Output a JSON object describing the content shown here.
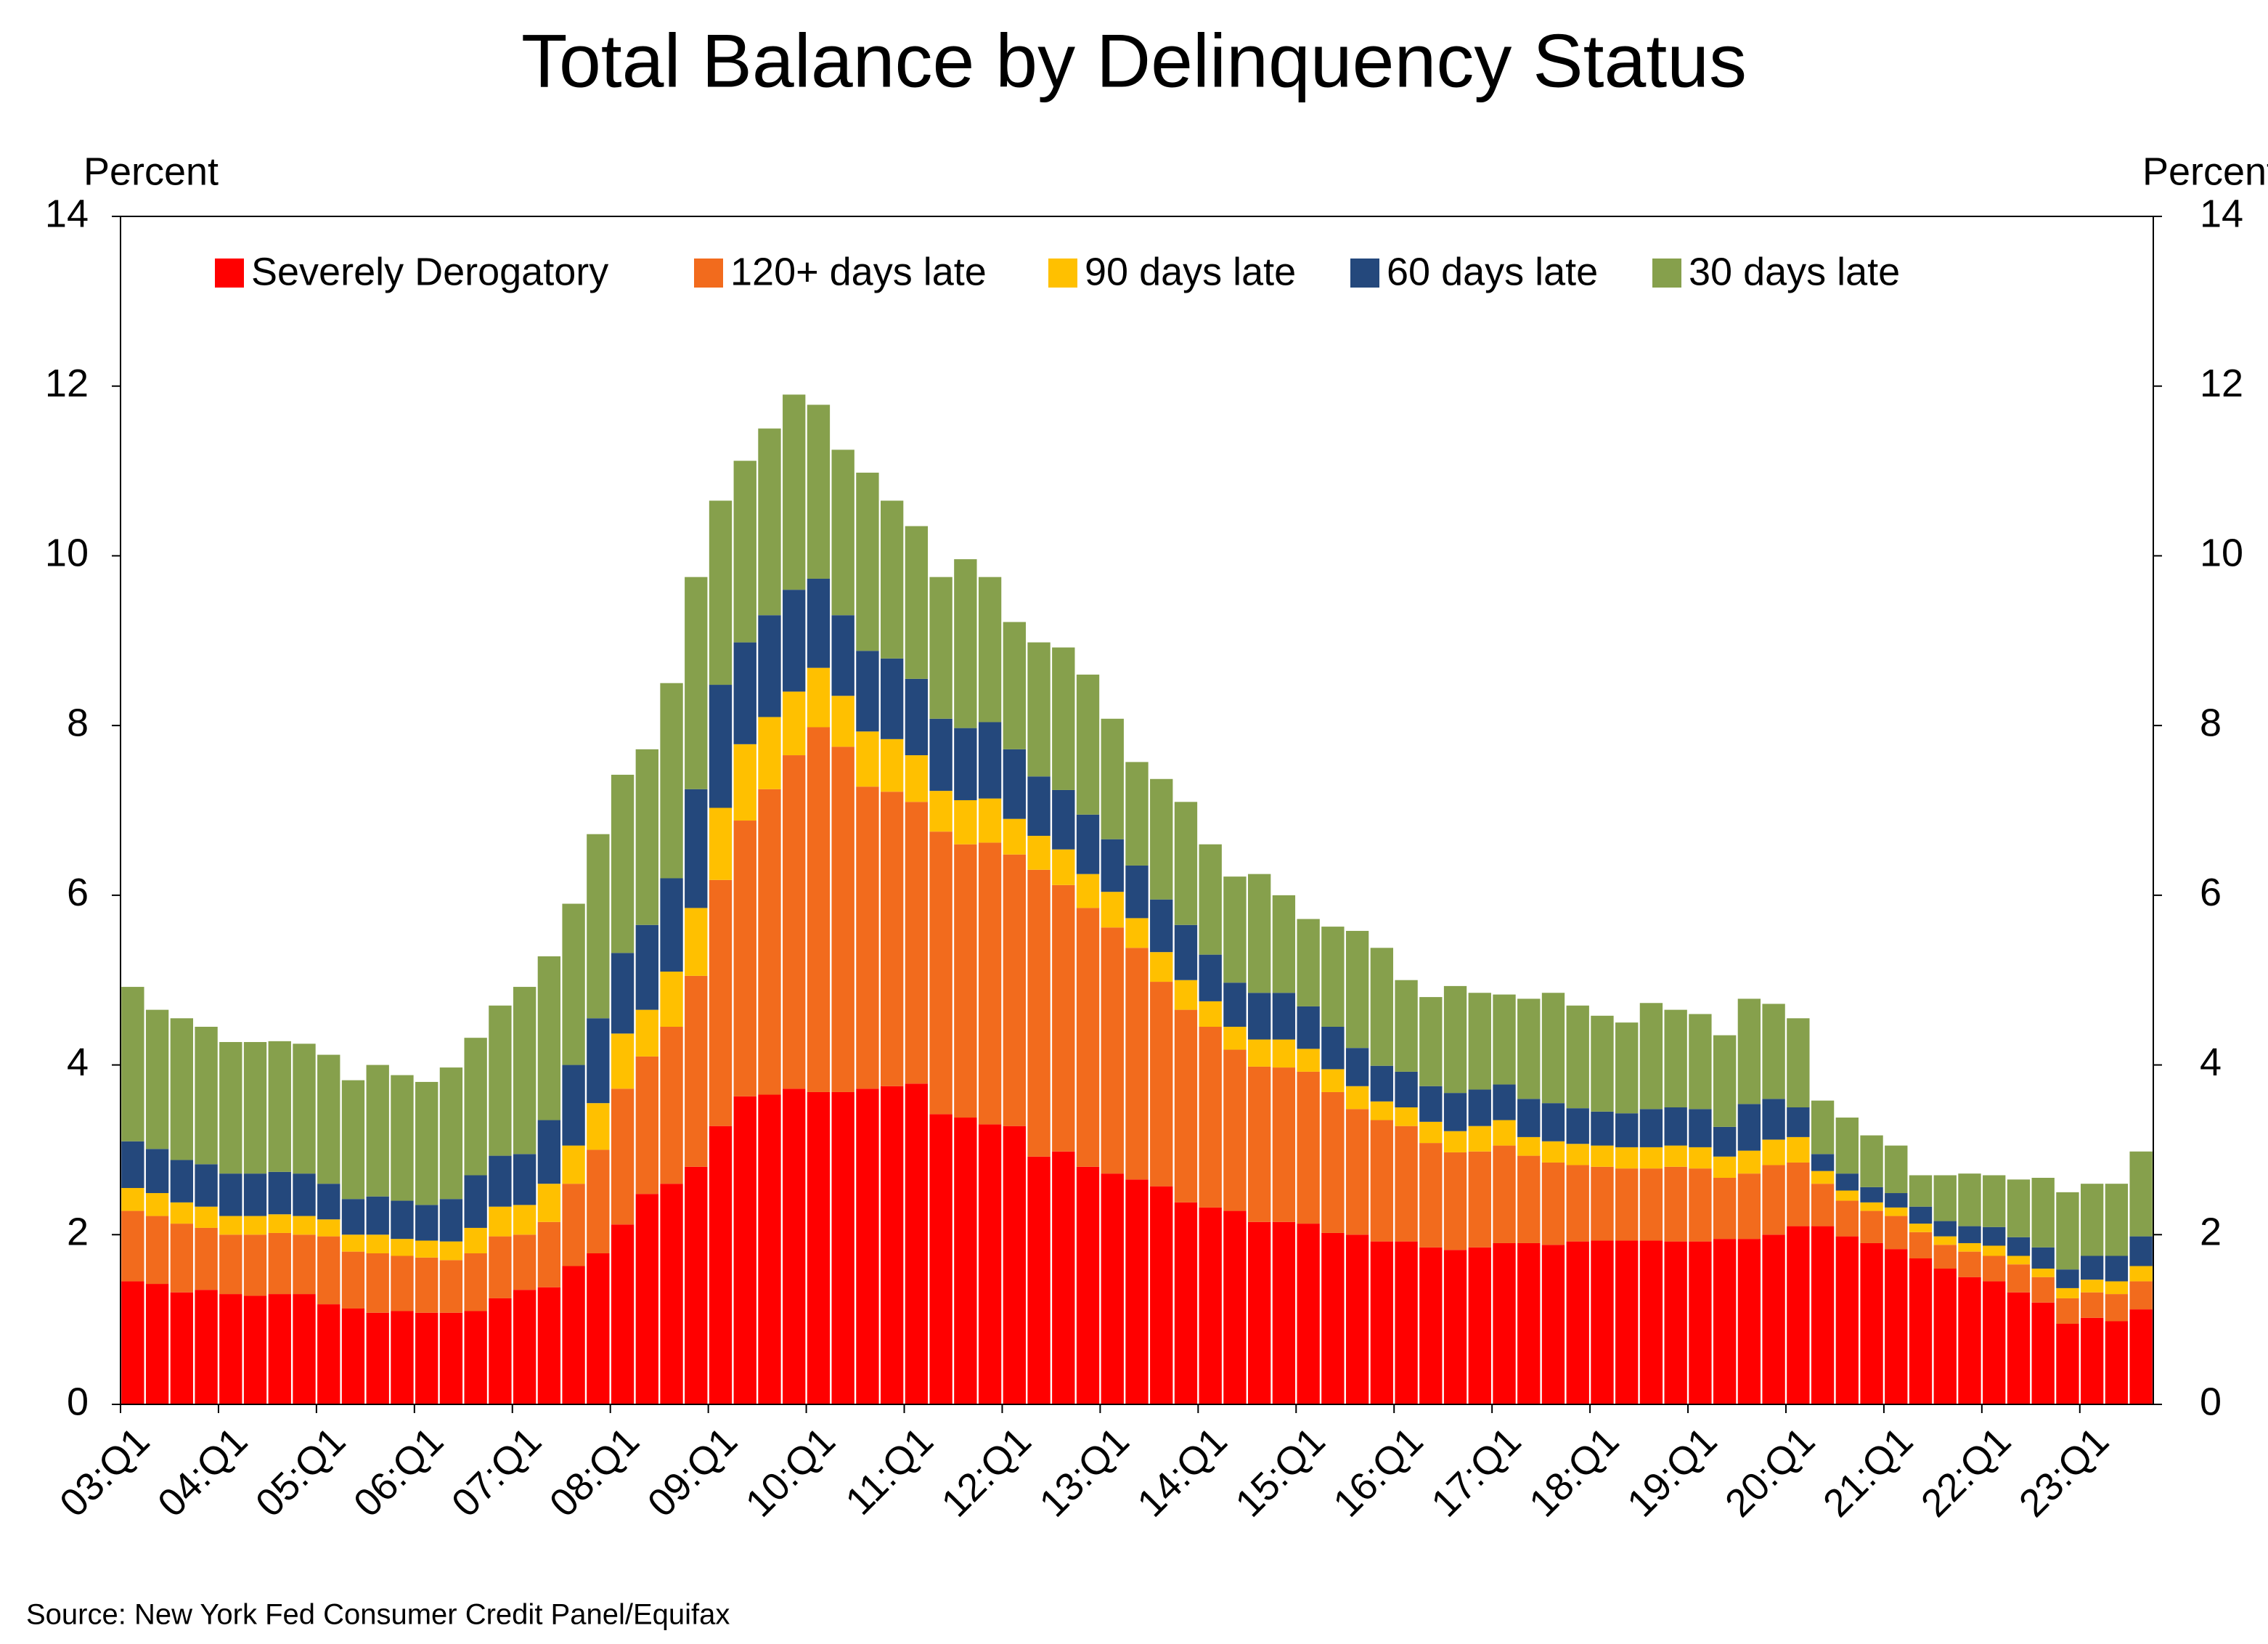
{
  "chart_data": {
    "type": "stacked_bar",
    "title": "Total Balance by Delinquency Status",
    "y_label": "Percent",
    "y2_label": "Percent",
    "source": "Source: New York Fed Consumer Credit Panel/Equifax",
    "ylim": [
      0,
      14
    ],
    "yticks": [
      0,
      2,
      4,
      6,
      8,
      10,
      12,
      14
    ],
    "y2lim": [
      0,
      14
    ],
    "y2ticks": [
      0,
      2,
      4,
      6,
      8,
      10,
      12,
      14
    ],
    "legend": "top",
    "categories": [
      "03:Q1",
      null,
      null,
      null,
      "04:Q1",
      null,
      null,
      null,
      "05:Q1",
      null,
      null,
      null,
      "06:Q1",
      null,
      null,
      null,
      "07:Q1",
      null,
      null,
      null,
      "08:Q1",
      null,
      null,
      null,
      "09:Q1",
      null,
      null,
      null,
      "10:Q1",
      null,
      null,
      null,
      "11:Q1",
      null,
      null,
      null,
      "12:Q1",
      null,
      null,
      null,
      "13:Q1",
      null,
      null,
      null,
      "14:Q1",
      null,
      null,
      null,
      "15:Q1",
      null,
      null,
      null,
      "16:Q1",
      null,
      null,
      null,
      "17:Q1",
      null,
      null,
      null,
      "18:Q1",
      null,
      null,
      null,
      "19:Q1",
      null,
      null,
      null,
      "20:Q1",
      null,
      null,
      null,
      "21:Q1",
      null,
      null,
      null,
      "22:Q1",
      null,
      null,
      null,
      "23:Q1",
      null,
      null
    ],
    "series": [
      {
        "name": "Severely Derogatory",
        "color": "#ff0000",
        "values": [
          1.45,
          1.42,
          1.32,
          1.35,
          1.3,
          1.28,
          1.3,
          1.3,
          1.18,
          1.13,
          1.08,
          1.1,
          1.08,
          1.08,
          1.1,
          1.25,
          1.35,
          1.38,
          1.63,
          1.78,
          2.12,
          2.48,
          2.6,
          2.8,
          3.28,
          3.63,
          3.65,
          3.72,
          3.68,
          3.68,
          3.72,
          3.75,
          3.78,
          3.42,
          3.38,
          3.3,
          3.28,
          2.92,
          2.98,
          2.8,
          2.72,
          2.65,
          2.57,
          2.38,
          2.32,
          2.28,
          2.15,
          2.15,
          2.13,
          2.02,
          2.0,
          1.92,
          1.92,
          1.85,
          1.82,
          1.85,
          1.9,
          1.9,
          1.88,
          1.92,
          1.93,
          1.93,
          1.93,
          1.92,
          1.92,
          1.95,
          1.95,
          2.0,
          2.1,
          2.1,
          1.98,
          1.9,
          1.83,
          1.72,
          1.6,
          1.5,
          1.45,
          1.32,
          1.2,
          0.95,
          1.02,
          0.98,
          1.12
        ]
      },
      {
        "name": "120+ days late",
        "color": "#f26b1d",
        "values": [
          0.83,
          0.8,
          0.81,
          0.73,
          0.7,
          0.72,
          0.72,
          0.7,
          0.8,
          0.67,
          0.7,
          0.65,
          0.65,
          0.62,
          0.68,
          0.73,
          0.65,
          0.77,
          0.97,
          1.22,
          1.6,
          1.62,
          1.85,
          2.25,
          2.9,
          3.25,
          3.6,
          3.93,
          4.3,
          4.07,
          3.56,
          3.47,
          3.32,
          3.33,
          3.22,
          3.32,
          3.2,
          3.38,
          3.14,
          3.05,
          2.9,
          2.73,
          2.41,
          2.27,
          2.13,
          1.9,
          1.83,
          1.82,
          1.79,
          1.66,
          1.48,
          1.43,
          1.36,
          1.23,
          1.15,
          1.13,
          1.15,
          1.03,
          0.97,
          0.9,
          0.87,
          0.85,
          0.85,
          0.88,
          0.86,
          0.72,
          0.77,
          0.82,
          0.75,
          0.5,
          0.42,
          0.38,
          0.39,
          0.31,
          0.28,
          0.3,
          0.3,
          0.33,
          0.3,
          0.3,
          0.3,
          0.32,
          0.33
        ]
      },
      {
        "name": "90 days late",
        "color": "#ffc000",
        "values": [
          0.27,
          0.27,
          0.25,
          0.25,
          0.22,
          0.22,
          0.22,
          0.22,
          0.2,
          0.2,
          0.22,
          0.2,
          0.2,
          0.22,
          0.3,
          0.35,
          0.35,
          0.45,
          0.45,
          0.55,
          0.65,
          0.55,
          0.65,
          0.8,
          0.85,
          0.9,
          0.85,
          0.75,
          0.7,
          0.6,
          0.65,
          0.62,
          0.55,
          0.48,
          0.52,
          0.52,
          0.42,
          0.4,
          0.42,
          0.4,
          0.42,
          0.35,
          0.35,
          0.35,
          0.3,
          0.27,
          0.32,
          0.33,
          0.27,
          0.27,
          0.27,
          0.22,
          0.22,
          0.25,
          0.25,
          0.3,
          0.3,
          0.22,
          0.25,
          0.25,
          0.25,
          0.25,
          0.25,
          0.25,
          0.25,
          0.25,
          0.27,
          0.3,
          0.3,
          0.15,
          0.12,
          0.1,
          0.1,
          0.1,
          0.1,
          0.1,
          0.12,
          0.1,
          0.1,
          0.12,
          0.15,
          0.15,
          0.18
        ]
      },
      {
        "name": "60 days late",
        "color": "#24487c",
        "values": [
          0.55,
          0.52,
          0.5,
          0.5,
          0.5,
          0.5,
          0.5,
          0.5,
          0.42,
          0.42,
          0.45,
          0.45,
          0.42,
          0.5,
          0.62,
          0.6,
          0.6,
          0.75,
          0.95,
          1.0,
          0.95,
          1.0,
          1.1,
          1.4,
          1.45,
          1.2,
          1.2,
          1.2,
          1.05,
          0.95,
          0.95,
          0.95,
          0.9,
          0.85,
          0.85,
          0.9,
          0.82,
          0.7,
          0.7,
          0.7,
          0.62,
          0.62,
          0.62,
          0.65,
          0.55,
          0.52,
          0.55,
          0.55,
          0.5,
          0.5,
          0.45,
          0.42,
          0.42,
          0.42,
          0.45,
          0.43,
          0.42,
          0.45,
          0.45,
          0.42,
          0.4,
          0.4,
          0.45,
          0.45,
          0.45,
          0.35,
          0.55,
          0.48,
          0.35,
          0.2,
          0.2,
          0.18,
          0.17,
          0.2,
          0.18,
          0.2,
          0.22,
          0.22,
          0.25,
          0.22,
          0.28,
          0.3,
          0.35
        ]
      },
      {
        "name": "30 days late",
        "color": "#86a04c",
        "values": [
          1.82,
          1.64,
          1.67,
          1.62,
          1.55,
          1.55,
          1.54,
          1.53,
          1.52,
          1.4,
          1.55,
          1.48,
          1.45,
          1.55,
          1.62,
          1.77,
          1.97,
          1.93,
          1.9,
          2.17,
          2.1,
          2.07,
          2.3,
          2.5,
          2.17,
          2.14,
          2.2,
          2.3,
          2.05,
          1.95,
          2.1,
          1.86,
          1.8,
          1.67,
          1.99,
          1.71,
          1.5,
          1.58,
          1.68,
          1.65,
          1.42,
          1.22,
          1.42,
          1.45,
          1.3,
          1.25,
          1.4,
          1.15,
          1.03,
          1.18,
          1.38,
          1.39,
          1.08,
          1.05,
          1.26,
          1.14,
          1.06,
          1.18,
          1.3,
          1.21,
          1.13,
          1.07,
          1.25,
          1.15,
          1.12,
          1.08,
          1.24,
          1.12,
          1.05,
          0.63,
          0.66,
          0.61,
          0.56,
          0.37,
          0.54,
          0.62,
          0.61,
          0.68,
          0.82,
          0.91,
          0.85,
          0.85,
          1.0
        ]
      }
    ]
  }
}
